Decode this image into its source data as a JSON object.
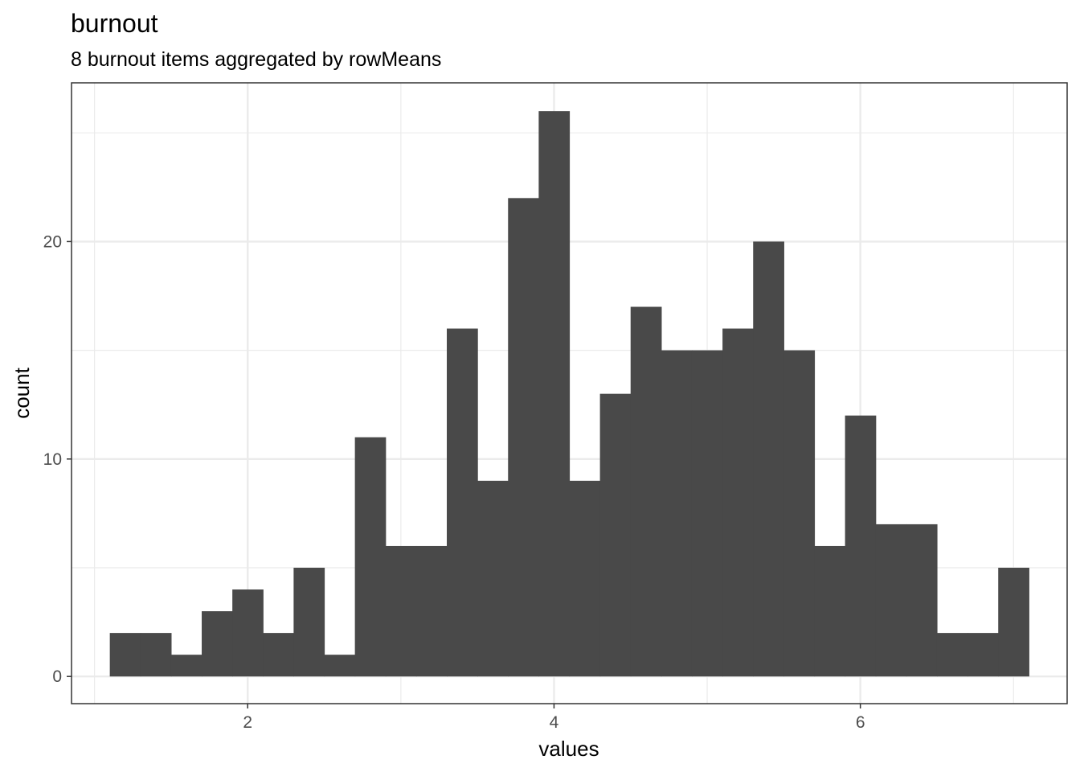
{
  "chart_data": {
    "type": "bar",
    "title": "burnout",
    "subtitle": "8 burnout items aggregated by rowMeans",
    "xlabel": "values",
    "ylabel": "count",
    "xlim": [
      0.85,
      7.35
    ],
    "ylim": [
      -1.25,
      27.3
    ],
    "x_ticks": [
      2,
      4,
      6
    ],
    "y_ticks": [
      0,
      10,
      20
    ],
    "x_minor_gridlines": [
      1,
      3,
      5,
      7
    ],
    "y_minor_gridlines": [
      5,
      15,
      25
    ],
    "grid": true,
    "bin_width": 0.2,
    "bin_starts": [
      1.1,
      1.3,
      1.5,
      1.7,
      1.9,
      2.1,
      2.3,
      2.5,
      2.7,
      2.9,
      3.1,
      3.3,
      3.5,
      3.7,
      3.9,
      4.1,
      4.3,
      4.5,
      4.7,
      4.9,
      5.1,
      5.3,
      5.5,
      5.7,
      5.9,
      6.1,
      6.3,
      6.5,
      6.7,
      6.9,
      7.1
    ],
    "values": [
      2,
      2,
      1,
      3,
      4,
      2,
      5,
      1,
      11,
      6,
      6,
      16,
      9,
      22,
      26,
      9,
      13,
      17,
      15,
      15,
      16,
      20,
      15,
      6,
      12,
      7,
      7,
      2,
      2,
      5
    ],
    "bar_color": "#494949",
    "grid_color": "#ebebeb",
    "panel_border_color": "#333333"
  }
}
